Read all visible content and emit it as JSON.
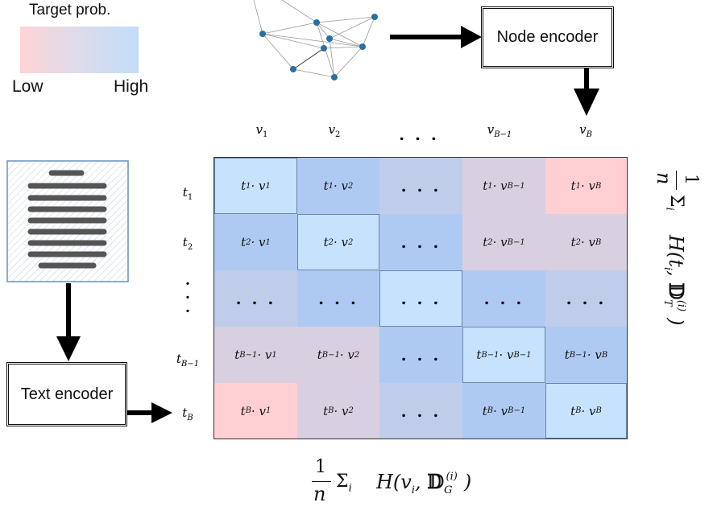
{
  "legend": {
    "title": "Target prob.",
    "low": "Low",
    "high": "High"
  },
  "encoders": {
    "node": "Node encoder",
    "text": "Text encoder"
  },
  "columns": [
    "v1",
    "v2",
    "...",
    "vB-1",
    "vB"
  ],
  "rows": [
    "t1",
    "t2",
    "...",
    "tB-1",
    "tB"
  ],
  "cells": [
    [
      {
        "text": "t1·v1",
        "level": "high"
      },
      {
        "text": "t1·v2",
        "level": "mid-high"
      },
      {
        "text": "...",
        "level": "mid"
      },
      {
        "text": "t1·vB-1",
        "level": "mid-low"
      },
      {
        "text": "t1·vB",
        "level": "low"
      }
    ],
    [
      {
        "text": "t2·v1",
        "level": "mid-high"
      },
      {
        "text": "t2·v2",
        "level": "high"
      },
      {
        "text": "...",
        "level": "mid-high"
      },
      {
        "text": "t2·vB-1",
        "level": "mid-low"
      },
      {
        "text": "t2·vB",
        "level": "mid-low"
      }
    ],
    [
      {
        "text": "...",
        "level": "mid"
      },
      {
        "text": "...",
        "level": "mid-high"
      },
      {
        "text": "...",
        "level": "high"
      },
      {
        "text": "...",
        "level": "mid-high"
      },
      {
        "text": "...",
        "level": "mid"
      }
    ],
    [
      {
        "text": "tB-1·v1",
        "level": "mid-low"
      },
      {
        "text": "tB-1·v2",
        "level": "mid-low"
      },
      {
        "text": "...",
        "level": "mid-high"
      },
      {
        "text": "tB-1·vB-1",
        "level": "high"
      },
      {
        "text": "tB-1·vB",
        "level": "mid-high"
      }
    ],
    [
      {
        "text": "tB·v1",
        "level": "low"
      },
      {
        "text": "tB·v2",
        "level": "mid-low"
      },
      {
        "text": "...",
        "level": "mid"
      },
      {
        "text": "tB·vB-1",
        "level": "mid-high"
      },
      {
        "text": "tB·vB",
        "level": "high"
      }
    ]
  ],
  "colors": {
    "low": "#ffcfd3",
    "mid-low": "#d8cfe0",
    "mid": "#c0cdea",
    "mid-high": "#aecaf3",
    "high": "#c6e2fd"
  },
  "formulas": {
    "bottom": "1/n Σi H(vi, D_G^(i))",
    "right": "1/n Σi H(ti, D_T^(i))"
  }
}
